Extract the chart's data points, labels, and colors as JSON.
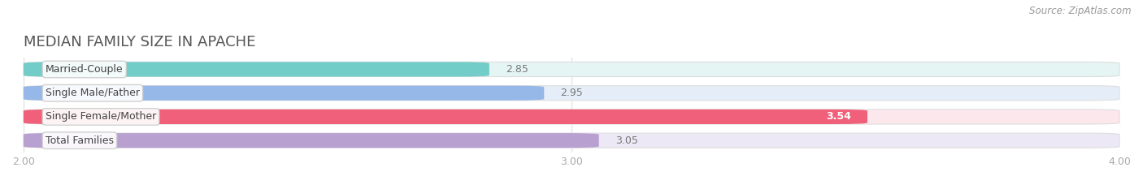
{
  "title": "MEDIAN FAMILY SIZE IN APACHE",
  "source": "Source: ZipAtlas.com",
  "categories": [
    "Married-Couple",
    "Single Male/Father",
    "Single Female/Mother",
    "Total Families"
  ],
  "values": [
    2.85,
    2.95,
    3.54,
    3.05
  ],
  "bar_colors": [
    "#72cdc8",
    "#95b8e8",
    "#f0607a",
    "#b8a0d0"
  ],
  "bar_bg_colors": [
    "#e5f5f4",
    "#e5eef8",
    "#fce8ec",
    "#ece8f5"
  ],
  "xlim": [
    2.0,
    4.0
  ],
  "xticks": [
    2.0,
    3.0,
    4.0
  ],
  "xtick_labels": [
    "2.00",
    "3.00",
    "4.00"
  ],
  "title_fontsize": 13,
  "label_fontsize": 9,
  "value_fontsize": 9,
  "source_fontsize": 8.5,
  "background_color": "#ffffff",
  "value_color_bright": "#ffffff",
  "value_color_dark": "#777777"
}
